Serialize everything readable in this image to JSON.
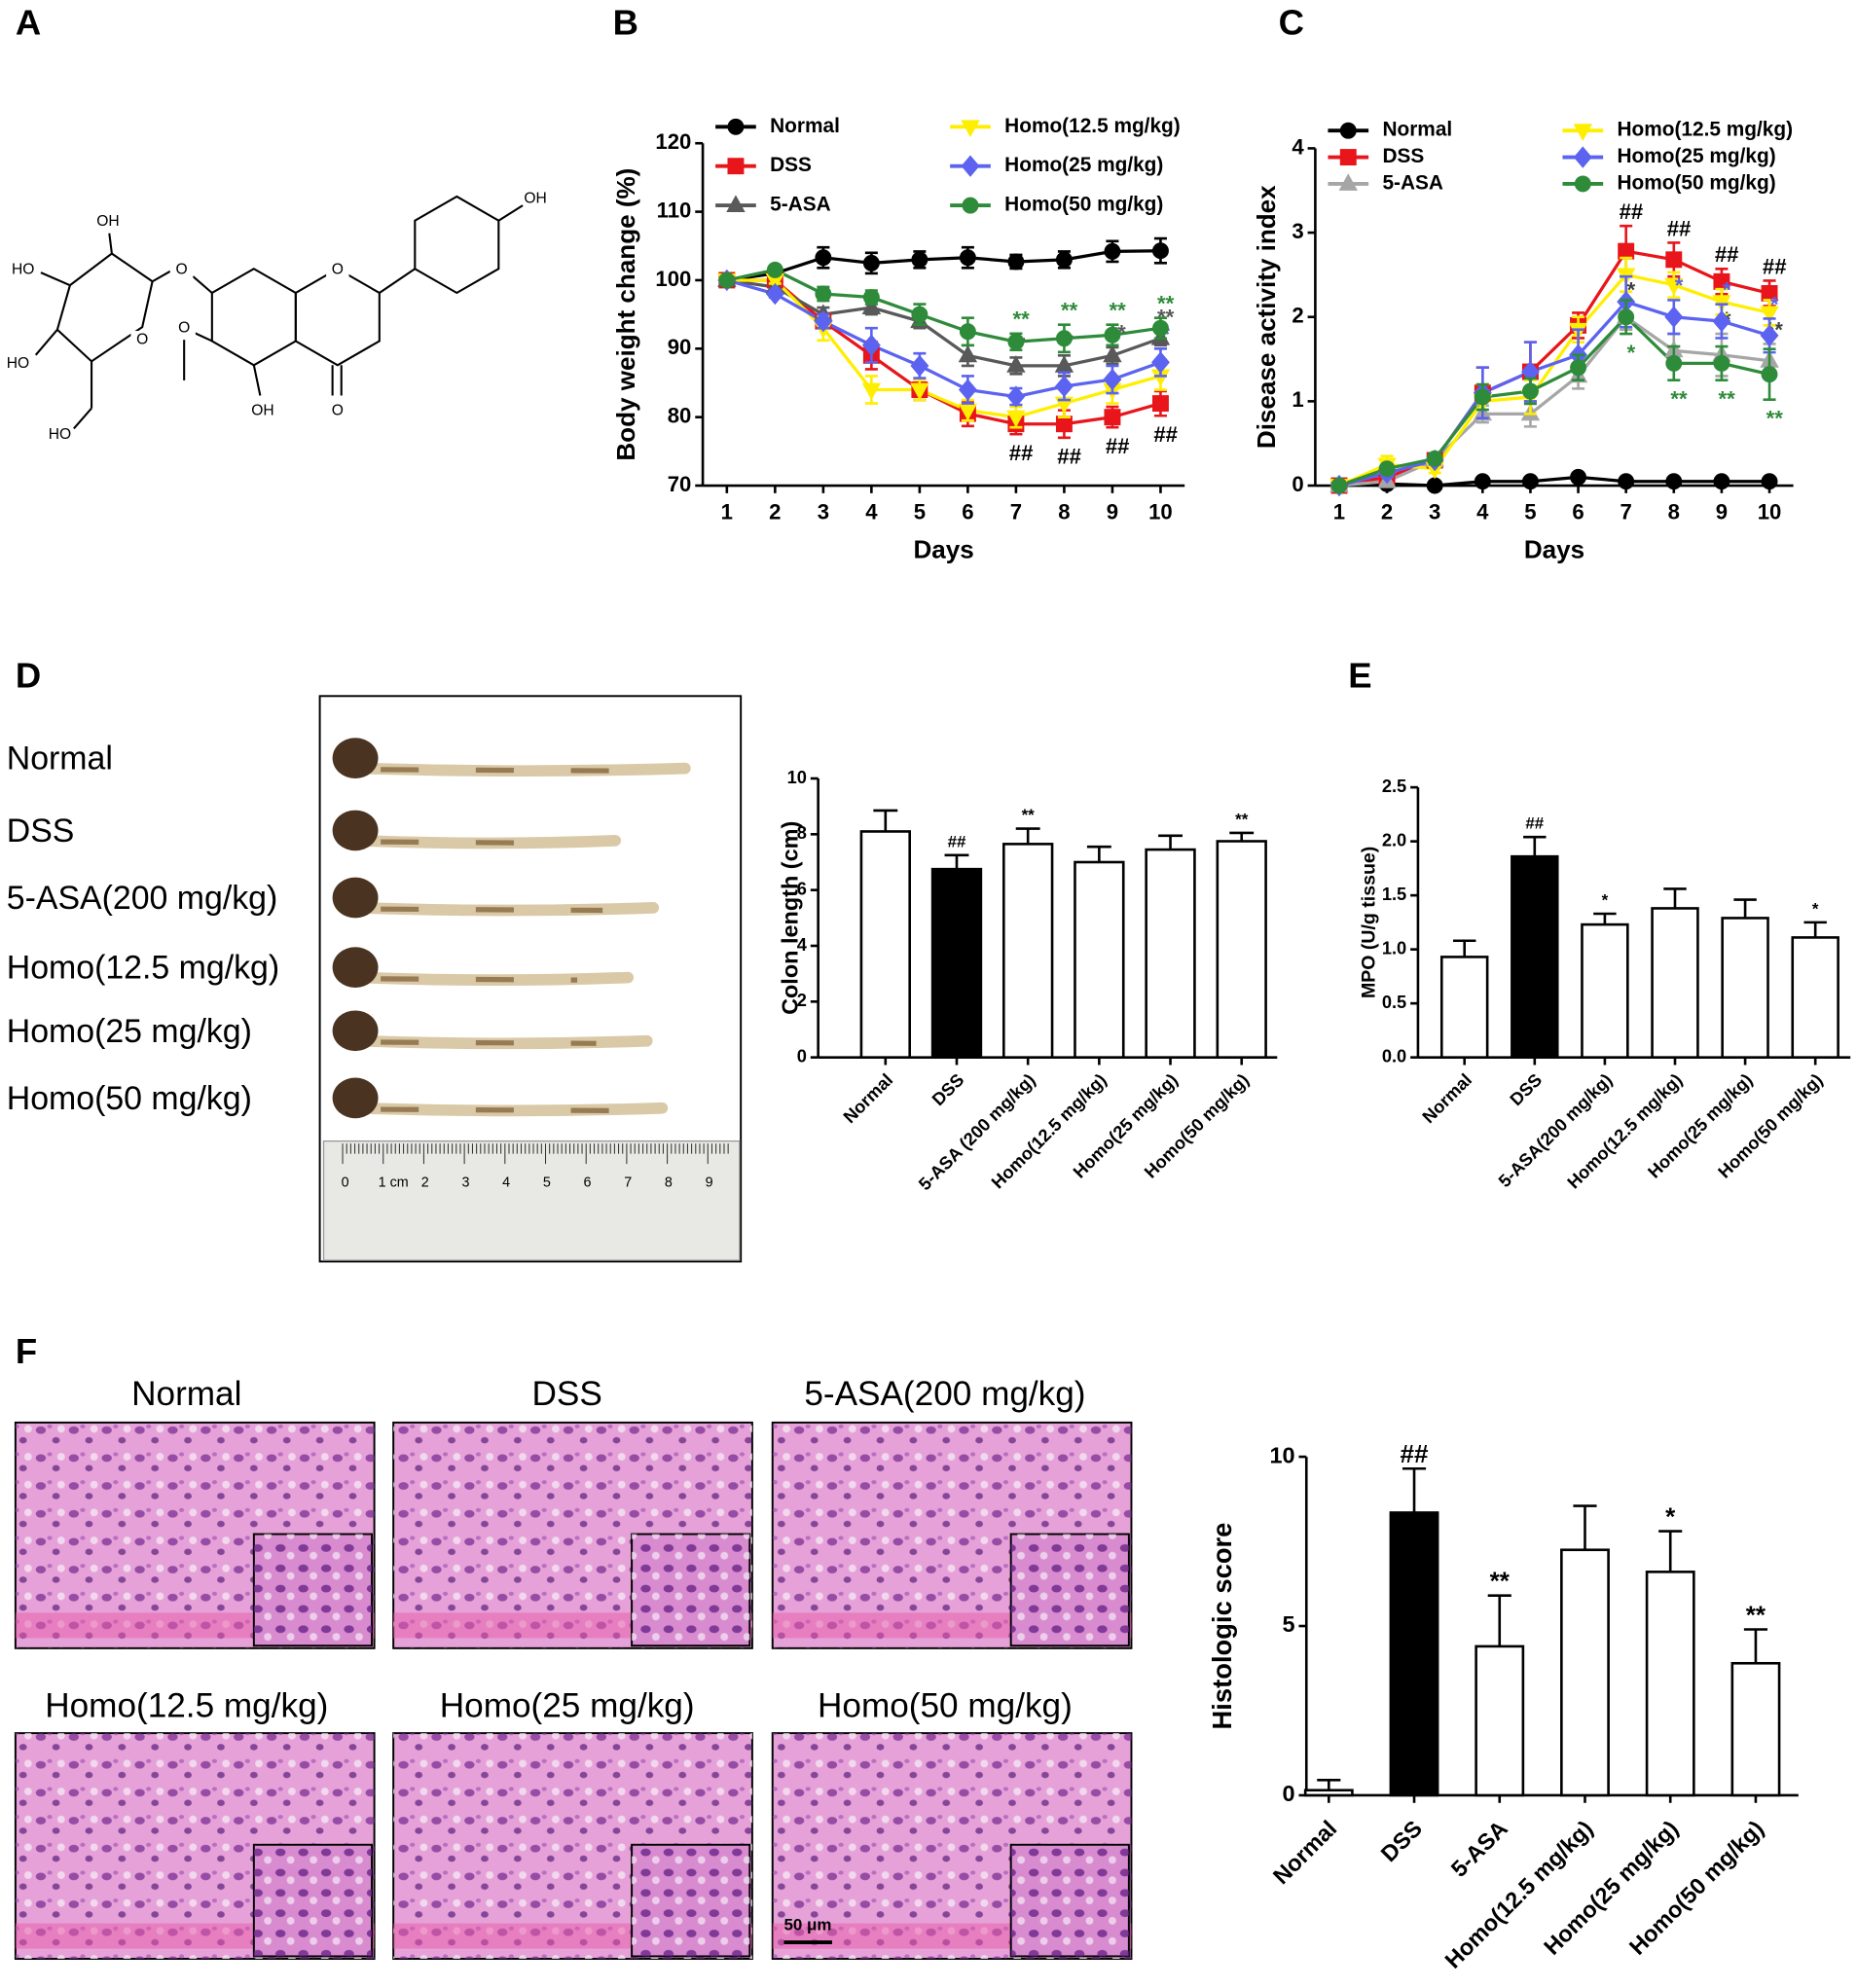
{
  "panels": [
    "A",
    "B",
    "C",
    "D",
    "E",
    "F"
  ],
  "structure": {
    "labels": [
      "OH",
      "OH",
      "HO",
      "HO",
      "HO",
      "O",
      "O",
      "O",
      "O",
      "OH",
      "O"
    ]
  },
  "colon_photo": {
    "groups": [
      "Normal",
      "DSS",
      "5-ASA(200 mg/kg)",
      "Homo(12.5 mg/kg)",
      "Homo(25 mg/kg)",
      "Homo(50 mg/kg)"
    ],
    "ruler": [
      "0",
      "1 cm",
      "2",
      "3",
      "4",
      "5",
      "6",
      "7",
      "8",
      "9"
    ]
  },
  "histology": {
    "titles": [
      "Normal",
      "DSS",
      "5-ASA(200 mg/kg)",
      "Homo(12.5 mg/kg)",
      "Homo(25 mg/kg)",
      "Homo(50 mg/kg)"
    ],
    "scale_bar": "50 μm"
  },
  "chart_data": [
    {
      "type": "line",
      "xlabel": "Days",
      "ylabel": "Body weight change (%)",
      "x": [
        1,
        2,
        3,
        4,
        5,
        6,
        7,
        8,
        9,
        10
      ],
      "xlim": [
        0.5,
        10.5
      ],
      "xticks": [
        1,
        2,
        3,
        4,
        5,
        6,
        7,
        8,
        9,
        10
      ],
      "ylim": [
        70,
        120
      ],
      "yticks": [
        70,
        80,
        90,
        100,
        110,
        120
      ],
      "series": [
        {
          "name": "Normal",
          "color": "#000000",
          "marker": "circle",
          "values": [
            100,
            101,
            103.3,
            102.5,
            103,
            103.3,
            102.7,
            103,
            104.2,
            104.3
          ],
          "errors": [
            0.3,
            0.3,
            1.5,
            1.5,
            1.2,
            1.5,
            1.0,
            1.2,
            1.5,
            1.8
          ]
        },
        {
          "name": "DSS",
          "color": "#e8151b",
          "marker": "square",
          "values": [
            100,
            100,
            94,
            89,
            84,
            80.5,
            79,
            79,
            80,
            82
          ],
          "errors": [
            0.3,
            0.5,
            1.0,
            2.0,
            1.5,
            1.8,
            1.5,
            2.0,
            1.5,
            1.8
          ],
          "annotations": [
            null,
            null,
            null,
            null,
            null,
            null,
            "##",
            "##",
            "##",
            "##"
          ],
          "annotation_color": "#000000",
          "annotation_position": "below"
        },
        {
          "name": "5-ASA",
          "color": "#595959",
          "marker": "triangle",
          "values": [
            100,
            99,
            95,
            96,
            94,
            89,
            87.5,
            87.5,
            89,
            91.5
          ],
          "errors": [
            0.3,
            0.5,
            1.0,
            1.0,
            1.0,
            1.5,
            1.2,
            1.5,
            1.2,
            1.0
          ],
          "annotations": [
            null,
            null,
            null,
            null,
            null,
            null,
            "*",
            "*",
            "**",
            "**"
          ]
        },
        {
          "name": "Homo(12.5 mg/kg)",
          "color": "#ffee00",
          "marker": "triangle-down",
          "values": [
            100,
            100,
            93,
            84,
            84,
            81,
            80,
            82,
            84,
            86
          ],
          "errors": [
            0.3,
            0.5,
            1.8,
            2.0,
            1.5,
            1.5,
            1.5,
            2.0,
            2.0,
            2.0
          ]
        },
        {
          "name": "Homo(25 mg/kg)",
          "color": "#5b63f0",
          "marker": "diamond",
          "values": [
            100,
            98,
            94,
            90.5,
            87.5,
            84,
            83,
            84.5,
            85.5,
            88
          ],
          "errors": [
            0.3,
            0.5,
            1.0,
            2.5,
            1.8,
            2.0,
            1.2,
            2.0,
            2.0,
            2.0
          ],
          "annotations": [
            null,
            null,
            null,
            null,
            null,
            null,
            null,
            null,
            null,
            "*"
          ]
        },
        {
          "name": "Homo(50 mg/kg)",
          "color": "#2e8b3a",
          "marker": "circle",
          "values": [
            100,
            101.5,
            98,
            97.5,
            95,
            92.5,
            91,
            91.5,
            92,
            93
          ],
          "errors": [
            0.3,
            0.5,
            1.0,
            1.0,
            1.5,
            2.0,
            1.2,
            2.0,
            1.5,
            1.5
          ],
          "annotations": [
            null,
            null,
            null,
            null,
            null,
            null,
            "**",
            "**",
            "**",
            "**"
          ]
        }
      ]
    },
    {
      "type": "line",
      "xlabel": "Days",
      "ylabel": "Disease activity index",
      "x": [
        1,
        2,
        3,
        4,
        5,
        6,
        7,
        8,
        9,
        10
      ],
      "xlim": [
        0.5,
        10.5
      ],
      "xticks": [
        1,
        2,
        3,
        4,
        5,
        6,
        7,
        8,
        9,
        10
      ],
      "ylim": [
        0,
        4
      ],
      "yticks": [
        0,
        1,
        2,
        3,
        4
      ],
      "series": [
        {
          "name": "Normal",
          "color": "#000000",
          "marker": "circle",
          "values": [
            0,
            0.02,
            0,
            0.05,
            0.05,
            0.1,
            0.05,
            0.05,
            0.05,
            0.05
          ]
        },
        {
          "name": "DSS",
          "color": "#e8151b",
          "marker": "square",
          "values": [
            0,
            0.1,
            0.3,
            1.1,
            1.35,
            1.9,
            2.78,
            2.68,
            2.42,
            2.28
          ],
          "errors": [
            0,
            0.05,
            0.05,
            0.3,
            0.35,
            0.15,
            0.3,
            0.2,
            0.15,
            0.15
          ],
          "annotations": [
            null,
            null,
            null,
            null,
            null,
            null,
            "##",
            "##",
            "##",
            "##"
          ],
          "annotation_color": "#000000"
        },
        {
          "name": "5-ASA",
          "color": "#a6a6a6",
          "marker": "triangle",
          "values": [
            0,
            0.05,
            0.3,
            0.85,
            0.85,
            1.3,
            2.0,
            1.6,
            1.55,
            1.48
          ],
          "errors": [
            0,
            0.05,
            0.05,
            0.1,
            0.15,
            0.15,
            0.15,
            0.2,
            0.25,
            0.2
          ],
          "annotations": [
            null,
            null,
            null,
            null,
            null,
            null,
            "*",
            null,
            "*",
            "**"
          ],
          "annotation_color": "#404040"
        },
        {
          "name": "Homo(12.5 mg/kg)",
          "color": "#ffee00",
          "marker": "triangle-down",
          "values": [
            0,
            0.25,
            0.2,
            1.0,
            1.05,
            1.85,
            2.5,
            2.38,
            2.18,
            2.05
          ],
          "errors": [
            0,
            0.1,
            0.05,
            0.2,
            0.2,
            0.15,
            0.2,
            0.15,
            0.15,
            0.15
          ]
        },
        {
          "name": "Homo(25 mg/kg)",
          "color": "#5b63f0",
          "marker": "diamond",
          "values": [
            0,
            0.15,
            0.3,
            1.1,
            1.35,
            1.55,
            2.18,
            2.0,
            1.95,
            1.78
          ],
          "errors": [
            0,
            0.05,
            0.05,
            0.3,
            0.35,
            0.3,
            0.3,
            0.2,
            0.2,
            0.2
          ],
          "annotations": [
            null,
            null,
            null,
            null,
            null,
            null,
            null,
            "*",
            "*",
            "*"
          ]
        },
        {
          "name": "Homo(50 mg/kg)",
          "color": "#2e8b3a",
          "marker": "circle",
          "values": [
            0,
            0.2,
            0.32,
            1.05,
            1.12,
            1.4,
            2.0,
            1.45,
            1.45,
            1.32
          ],
          "errors": [
            0,
            0.05,
            0.05,
            0.15,
            0.15,
            0.15,
            0.2,
            0.2,
            0.2,
            0.3
          ],
          "annotations": [
            null,
            null,
            null,
            null,
            null,
            null,
            "*",
            "**",
            "**",
            "**"
          ],
          "annotation_position": "below"
        }
      ]
    },
    {
      "type": "bar",
      "ylabel": "Colon length (cm)",
      "categories": [
        "Normal",
        "DSS",
        "5-ASA (200 mg/kg)",
        "Homo(12.5 mg/kg)",
        "Homo(25 mg/kg)",
        "Homo(50 mg/kg)"
      ],
      "values": [
        8.1,
        6.75,
        7.65,
        7.0,
        7.45,
        7.75
      ],
      "errors": [
        0.75,
        0.5,
        0.55,
        0.55,
        0.5,
        0.3
      ],
      "colors": [
        "#ffffff",
        "#000000",
        "#ffffff",
        "#ffffff",
        "#ffffff",
        "#ffffff"
      ],
      "annotations": [
        null,
        "##",
        "**",
        null,
        null,
        "**"
      ],
      "ylim": [
        0,
        10
      ],
      "yticks": [
        0,
        2,
        4,
        6,
        8,
        10
      ]
    },
    {
      "type": "bar",
      "ylabel": "MPO (U/g tissue)",
      "categories": [
        "Normal",
        "DSS",
        "5-ASA(200 mg/kg)",
        "Homo(12.5 mg/kg)",
        "Homo(25 mg/kg)",
        "Homo(50 mg/kg)"
      ],
      "values": [
        0.93,
        1.86,
        1.23,
        1.38,
        1.29,
        1.11
      ],
      "errors": [
        0.15,
        0.18,
        0.1,
        0.18,
        0.17,
        0.14
      ],
      "colors": [
        "#ffffff",
        "#000000",
        "#ffffff",
        "#ffffff",
        "#ffffff",
        "#ffffff"
      ],
      "annotations": [
        null,
        "##",
        "*",
        null,
        null,
        "*"
      ],
      "ylim": [
        0,
        2.5
      ],
      "yticks": [
        {
          "value": 0,
          "label": "0.0"
        },
        0.5,
        {
          "value": 1,
          "label": "1.0"
        },
        1.5,
        {
          "value": 2,
          "label": "2.0"
        },
        2.5
      ]
    },
    {
      "type": "bar",
      "ylabel": "Histologic score",
      "categories": [
        "Normal",
        "DSS",
        "5-ASA",
        "Homo(12.5 mg/kg)",
        "Homo(25 mg/kg)",
        "Homo(50 mg/kg)"
      ],
      "values": [
        0.15,
        8.35,
        4.4,
        7.25,
        6.6,
        3.9
      ],
      "errors": [
        0.3,
        1.3,
        1.5,
        1.3,
        1.2,
        1.0
      ],
      "colors": [
        "#ffffff",
        "#000000",
        "#ffffff",
        "#ffffff",
        "#ffffff",
        "#ffffff"
      ],
      "annotations": [
        null,
        "##",
        "**",
        null,
        "*",
        "**"
      ],
      "ylim": [
        0,
        10
      ],
      "yticks": [
        0,
        5,
        10
      ]
    }
  ]
}
